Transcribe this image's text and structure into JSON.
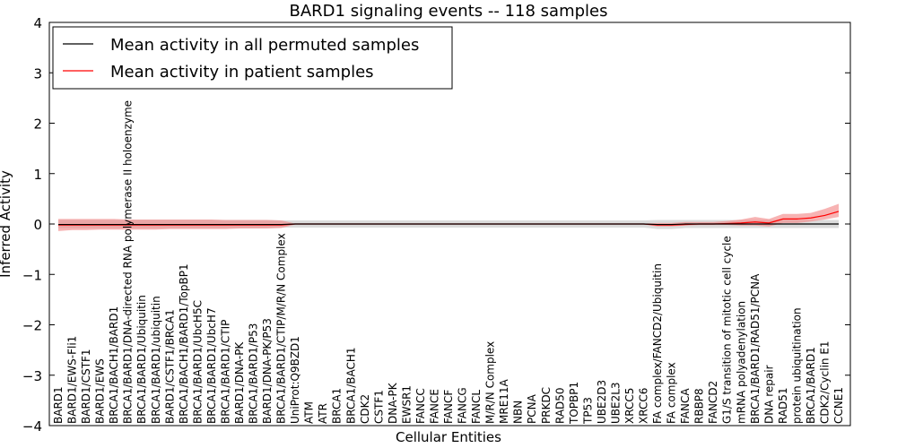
{
  "chart_data": {
    "type": "line",
    "title": "BARD1 signaling events -- 118 samples",
    "xlabel": "Cellular Entities",
    "ylabel": "Inferred Activity",
    "ylim": [
      -4,
      4
    ],
    "yticks": [
      -4,
      -3,
      -2,
      -1,
      0,
      1,
      2,
      3,
      4
    ],
    "ytick_labels": [
      "−4",
      "−3",
      "−2",
      "−1",
      "0",
      "1",
      "2",
      "3",
      "4"
    ],
    "grid": false,
    "legend_position": "top-left",
    "colors": {
      "permuted": "#000000",
      "patient": "#ff0000",
      "permuted_band": "#bdbdbd",
      "patient_band": "#f28b8b"
    },
    "categories": [
      "BARD1",
      "BARD1/EWS-Fli1",
      "BARD1/CSTF1",
      "BARD1/EWS",
      "BRCA1/BACH1/BARD1",
      "BRCA1/BARD1/DNA-directed RNA polymerase II holoenzyme",
      "BRCA1/BARD1/Ubiquitin",
      "BRCA1/BARD1/ubiquitin",
      "BARD1/CSTF1/BRCA1",
      "BRCA1/BACH1/BARD1/TopBP1",
      "BRCA1/BARD1/UbcH5C",
      "BRCA1/BARD1/UbcH7",
      "BRCA1/BARD1/CTIP",
      "BARD1/DNA-PK",
      "BRCA1/BARD1/P53",
      "BARD1/DNA-PK/P53",
      "BRCA1/BARD1/CTIP/M/R/N Complex",
      "UniProt:Q9BZD1",
      "ATM",
      "ATR",
      "BRCA1",
      "BRCA1/BACH1",
      "CDK2",
      "CSTF1",
      "DNA-PK",
      "EWSR1",
      "FANCC",
      "FANCE",
      "FANCF",
      "FANCG",
      "FANCL",
      "M/R/N Complex",
      "MRE11A",
      "NBN",
      "PCNA",
      "PRKDC",
      "RAD50",
      "TOPBP1",
      "TP53",
      "UBE2D3",
      "UBE2L3",
      "XRCC5",
      "XRCC6",
      "FA complex/FANCD2/Ubiquitin",
      "FA complex",
      "FANCA",
      "RBBP8",
      "FANCD2",
      "G1/S transition of mitotic cell cycle",
      "mRNA polyadenylation",
      "BRCA1/BARD1/RAD51/PCNA",
      "DNA repair",
      "RAD51",
      "protein ubiquitination",
      "BRCA1/BARD1",
      "CDK2/Cyclin E1",
      "CCNE1"
    ],
    "series": [
      {
        "name": "Mean activity in all permuted samples",
        "values": [
          -0.01,
          -0.01,
          -0.01,
          -0.01,
          -0.01,
          -0.01,
          -0.01,
          -0.01,
          -0.01,
          -0.01,
          -0.01,
          -0.01,
          -0.01,
          -0.01,
          -0.01,
          -0.01,
          -0.01,
          0,
          0,
          0,
          0,
          0,
          0,
          0,
          0,
          0,
          0,
          0,
          0,
          0,
          0,
          0,
          0,
          0,
          0,
          0,
          0,
          0,
          0,
          0,
          0,
          0,
          0,
          -0.01,
          -0.01,
          0,
          0,
          0,
          0,
          0,
          0,
          0,
          0,
          0,
          0,
          0,
          0
        ],
        "band_low": [
          -0.08,
          -0.08,
          -0.08,
          -0.08,
          -0.08,
          -0.08,
          -0.08,
          -0.08,
          -0.08,
          -0.08,
          -0.08,
          -0.08,
          -0.08,
          -0.08,
          -0.08,
          -0.08,
          -0.07,
          -0.07,
          -0.07,
          -0.07,
          -0.07,
          -0.07,
          -0.07,
          -0.07,
          -0.07,
          -0.07,
          -0.07,
          -0.07,
          -0.07,
          -0.07,
          -0.07,
          -0.07,
          -0.07,
          -0.07,
          -0.07,
          -0.07,
          -0.07,
          -0.07,
          -0.07,
          -0.07,
          -0.07,
          -0.07,
          -0.07,
          -0.1,
          -0.1,
          -0.08,
          -0.08,
          -0.08,
          -0.08,
          -0.08,
          -0.08,
          -0.08,
          -0.08,
          -0.08,
          -0.08,
          -0.08,
          -0.08
        ],
        "band_high": [
          0.08,
          0.08,
          0.08,
          0.08,
          0.08,
          0.08,
          0.08,
          0.08,
          0.08,
          0.08,
          0.08,
          0.08,
          0.08,
          0.08,
          0.08,
          0.08,
          0.07,
          0.07,
          0.07,
          0.07,
          0.07,
          0.07,
          0.07,
          0.07,
          0.07,
          0.07,
          0.07,
          0.07,
          0.07,
          0.07,
          0.07,
          0.07,
          0.07,
          0.07,
          0.07,
          0.07,
          0.07,
          0.07,
          0.07,
          0.07,
          0.07,
          0.07,
          0.07,
          0.08,
          0.08,
          0.08,
          0.08,
          0.08,
          0.08,
          0.08,
          0.08,
          0.08,
          0.08,
          0.08,
          0.08,
          0.08,
          0.08
        ]
      },
      {
        "name": "Mean activity in patient samples",
        "values": [
          -0.02,
          -0.02,
          -0.02,
          -0.02,
          -0.02,
          -0.02,
          -0.02,
          -0.02,
          -0.02,
          -0.02,
          -0.02,
          -0.02,
          -0.02,
          -0.02,
          -0.02,
          -0.02,
          -0.02,
          0,
          0,
          0,
          0,
          0,
          0,
          0,
          0,
          0,
          0,
          0,
          0,
          0,
          0,
          0,
          0,
          0,
          0,
          0,
          0,
          0,
          0,
          0,
          0,
          0,
          0,
          -0.02,
          -0.02,
          -0.01,
          0,
          0,
          0.01,
          0.02,
          0.04,
          0.02,
          0.1,
          0.1,
          0.12,
          0.17,
          0.25
        ],
        "band_low": [
          -0.14,
          -0.12,
          -0.12,
          -0.11,
          -0.11,
          -0.11,
          -0.11,
          -0.11,
          -0.1,
          -0.1,
          -0.1,
          -0.1,
          -0.1,
          -0.09,
          -0.09,
          -0.09,
          -0.08,
          -0.01,
          -0.01,
          -0.01,
          -0.01,
          -0.01,
          -0.01,
          -0.01,
          -0.01,
          -0.01,
          -0.01,
          -0.01,
          -0.01,
          -0.01,
          -0.01,
          -0.01,
          -0.01,
          -0.01,
          -0.01,
          -0.01,
          -0.01,
          -0.01,
          -0.01,
          -0.01,
          -0.01,
          -0.01,
          -0.01,
          -0.05,
          -0.05,
          -0.03,
          -0.02,
          -0.02,
          -0.02,
          -0.03,
          -0.03,
          -0.05,
          0.02,
          0.02,
          0.05,
          0.09,
          0.14
        ],
        "band_high": [
          0.1,
          0.1,
          0.1,
          0.1,
          0.1,
          0.09,
          0.09,
          0.09,
          0.09,
          0.09,
          0.09,
          0.09,
          0.08,
          0.08,
          0.08,
          0.08,
          0.07,
          0.01,
          0.01,
          0.01,
          0.01,
          0.01,
          0.01,
          0.01,
          0.01,
          0.01,
          0.01,
          0.01,
          0.01,
          0.01,
          0.01,
          0.01,
          0.01,
          0.01,
          0.01,
          0.01,
          0.01,
          0.01,
          0.01,
          0.01,
          0.01,
          0.01,
          0.01,
          0.02,
          0.02,
          0.04,
          0.04,
          0.04,
          0.06,
          0.09,
          0.14,
          0.1,
          0.2,
          0.2,
          0.22,
          0.3,
          0.4
        ]
      }
    ]
  }
}
